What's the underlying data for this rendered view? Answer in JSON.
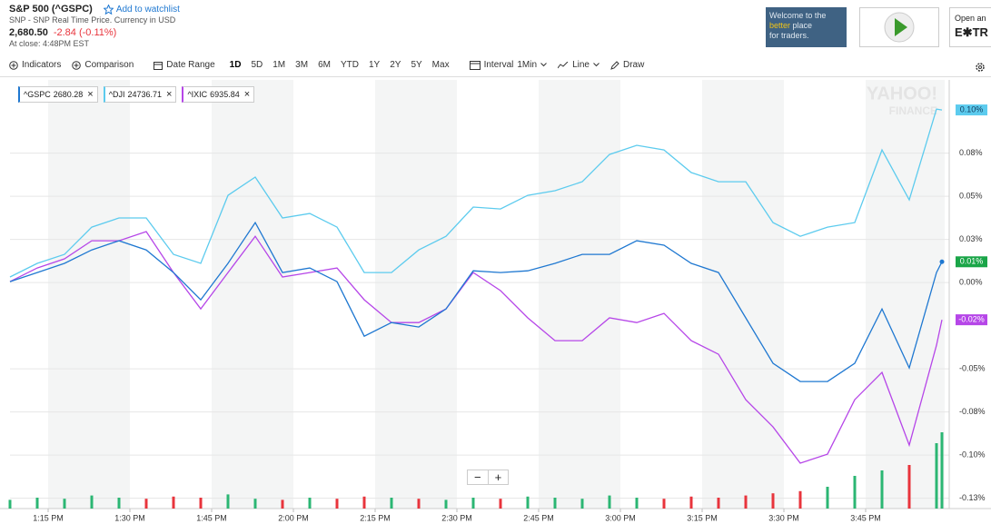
{
  "header": {
    "title": "S&P 500 (^GSPC)",
    "watchlist": "Add to watchlist",
    "subtitle": "SNP - SNP Real Time Price. Currency in USD",
    "price": "2,680.50",
    "change": "-2.84 (-0.11%)",
    "close_time": "At close: 4:48PM EST"
  },
  "ads": {
    "broker_lines": [
      "Welcome to the",
      "better",
      "place",
      "for traders."
    ],
    "open_text": "Open an",
    "brand": "E✱TR"
  },
  "toolbar": {
    "indicators": "Indicators",
    "comparison": "Comparison",
    "date_range": "Date Range",
    "periods": [
      "1D",
      "5D",
      "1M",
      "3M",
      "6M",
      "YTD",
      "1Y",
      "2Y",
      "5Y",
      "Max"
    ],
    "active_period": 0,
    "interval": "Interval",
    "interval_value": "1Min",
    "line": "Line",
    "draw": "Draw"
  },
  "close_icon": "×",
  "zoom": [
    "−",
    "+"
  ],
  "watermark": [
    "YAHOO!",
    "FINANCE"
  ],
  "chart_data": {
    "type": "line",
    "grid": true,
    "x": [
      8,
      13,
      18,
      23,
      28,
      33,
      38,
      43,
      48,
      53,
      58,
      63,
      68,
      73,
      78,
      83,
      88,
      93,
      98,
      103,
      108,
      113,
      118,
      123,
      128,
      133,
      138,
      143,
      148,
      153,
      158,
      163,
      168,
      173,
      178,
      179
    ],
    "xlim": [
      8,
      179.5
    ],
    "xticks": [
      {
        "value": 15,
        "label": "1:15 PM"
      },
      {
        "value": 30,
        "label": "1:30 PM"
      },
      {
        "value": 45,
        "label": "1:45 PM"
      },
      {
        "value": 60,
        "label": "2:00 PM"
      },
      {
        "value": 75,
        "label": "2:15 PM"
      },
      {
        "value": 90,
        "label": "2:30 PM"
      },
      {
        "value": 105,
        "label": "2:45 PM"
      },
      {
        "value": 120,
        "label": "3:00 PM"
      },
      {
        "value": 135,
        "label": "3:15 PM"
      },
      {
        "value": 150,
        "label": "3:30 PM"
      },
      {
        "value": 165,
        "label": "3:45 PM"
      }
    ],
    "ylim": [
      -0.131,
      0.1174
    ],
    "yticks": [
      {
        "value": 0.075,
        "label": "0.08%"
      },
      {
        "value": 0.05,
        "label": "0.05%"
      },
      {
        "value": 0.025,
        "label": "0.03%"
      },
      {
        "value": 0,
        "label": "0.00%"
      },
      {
        "value": -0.05,
        "label": "-0.05%"
      },
      {
        "value": -0.075,
        "label": "-0.08%"
      },
      {
        "value": -0.1,
        "label": "-0.10%"
      },
      {
        "value": -0.125,
        "label": "-0.13%"
      }
    ],
    "series": [
      {
        "name": "^GSPC",
        "quote": 2680.28,
        "color": "#1f78d1",
        "badge_color": "#1aa548",
        "badge_text_color": "#ffffff",
        "end_dot": true,
        "last_label": "0.01%",
        "values": [
          0.0005,
          0.0058,
          0.0111,
          0.0189,
          0.0242,
          0.0189,
          0.0058,
          -0.01,
          0.0111,
          0.0347,
          0.0058,
          0.0084,
          0.0005,
          -0.0311,
          -0.0232,
          -0.0258,
          -0.0153,
          0.0068,
          0.0058,
          0.0068,
          0.0111,
          0.0163,
          0.0163,
          0.0242,
          0.0216,
          0.0111,
          0.0058,
          -0.0205,
          -0.0468,
          -0.0574,
          -0.0574,
          -0.0468,
          -0.0153,
          -0.0495,
          0.0058,
          0.012
        ]
      },
      {
        "name": "^DJI",
        "quote": 24736.71,
        "color": "#5ccbee",
        "badge_color": "#5ccbee",
        "badge_text_color": "#123a5c",
        "end_dot": false,
        "last_label": "0.10%",
        "values": [
          0.0032,
          0.0111,
          0.0163,
          0.0321,
          0.0374,
          0.0374,
          0.0163,
          0.0111,
          0.0505,
          0.0611,
          0.0374,
          0.04,
          0.0321,
          0.0058,
          0.0058,
          0.0189,
          0.0268,
          0.0437,
          0.0426,
          0.0505,
          0.0532,
          0.0584,
          0.0742,
          0.0795,
          0.0768,
          0.0637,
          0.0584,
          0.0584,
          0.0347,
          0.0268,
          0.0321,
          0.0347,
          0.0768,
          0.0479,
          0.1005,
          0.1
        ]
      },
      {
        "name": "^IXIC",
        "quote": 6935.84,
        "color": "#b646e8",
        "badge_color": "#b646e8",
        "badge_text_color": "#ffffff",
        "end_dot": false,
        "last_label": "-0.02%",
        "values": [
          0.0005,
          0.0084,
          0.0137,
          0.0242,
          0.0242,
          0.0295,
          0.0058,
          -0.0153,
          0.0058,
          0.0268,
          0.0032,
          0.0058,
          0.0084,
          -0.01,
          -0.0232,
          -0.0232,
          -0.0153,
          0.0058,
          -0.0047,
          -0.0205,
          -0.0337,
          -0.0337,
          -0.0205,
          -0.0232,
          -0.0179,
          -0.0337,
          -0.0416,
          -0.0679,
          -0.0837,
          -0.1047,
          -0.0995,
          -0.0679,
          -0.0521,
          -0.0942,
          -0.0363,
          -0.0216
        ]
      }
    ],
    "volume": [
      8,
      10,
      9,
      12,
      10,
      9,
      11,
      10,
      13,
      9,
      8,
      10,
      9,
      11,
      10,
      9,
      8,
      10,
      9,
      11,
      10,
      9,
      12,
      10,
      9,
      11,
      10,
      12,
      14,
      16,
      20,
      30,
      35,
      40,
      60,
      70
    ],
    "volume_lim": [
      0,
      100
    ],
    "volume_up_color": "#2bb673",
    "volume_down_color": "#e8343c"
  }
}
